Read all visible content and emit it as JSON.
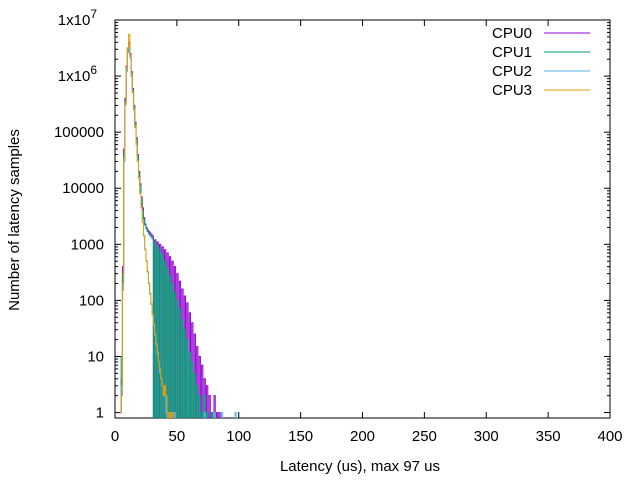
{
  "chart_data": {
    "type": "line",
    "title": "",
    "xlabel": "Latency (us), max 97 us",
    "ylabel": "Number of latency samples",
    "xlim": [
      0,
      400
    ],
    "ylim": [
      0.8,
      10000000
    ],
    "yscale": "log",
    "grid": false,
    "legend_position": "top-right",
    "x_ticks": [
      0,
      50,
      100,
      150,
      200,
      250,
      300,
      350,
      400
    ],
    "x_tick_labels": [
      "0",
      "50",
      "100",
      "150",
      "200",
      "250",
      "300",
      "350",
      "400"
    ],
    "y_ticks": [
      1,
      10,
      100,
      1000,
      10000,
      100000,
      1000000,
      10000000
    ],
    "y_tick_labels": [
      "1",
      "10",
      "100",
      "1000",
      "10000",
      "100000",
      "1x10",
      "1x10"
    ],
    "y_tick_exponents": [
      "",
      "",
      "",
      "",
      "",
      "",
      "6",
      "7"
    ],
    "series": [
      {
        "name": "CPU0",
        "color": "#9400d3",
        "points": [
          [
            3,
            1
          ],
          [
            4,
            1
          ],
          [
            5,
            4
          ],
          [
            6,
            400
          ],
          [
            7,
            50000
          ],
          [
            8,
            400000
          ],
          [
            9,
            1500000
          ],
          [
            10,
            3000000
          ],
          [
            11,
            4000000
          ],
          [
            12,
            2500000
          ],
          [
            13,
            1200000
          ],
          [
            14,
            600000
          ],
          [
            15,
            300000
          ],
          [
            16,
            150000
          ],
          [
            17,
            80000
          ],
          [
            18,
            40000
          ],
          [
            19,
            20000
          ],
          [
            20,
            12000
          ],
          [
            21,
            7000
          ],
          [
            22,
            4500
          ],
          [
            23,
            3000
          ],
          [
            24,
            2300
          ],
          [
            25,
            2000
          ],
          [
            26,
            1800
          ],
          [
            27,
            1700
          ],
          [
            28,
            1600
          ],
          [
            29,
            1500
          ],
          [
            30,
            1400
          ],
          [
            32,
            1200
          ],
          [
            34,
            1100
          ],
          [
            36,
            1000
          ],
          [
            38,
            900
          ],
          [
            40,
            800
          ],
          [
            42,
            700
          ],
          [
            44,
            600
          ],
          [
            46,
            500
          ],
          [
            48,
            400
          ],
          [
            50,
            300
          ],
          [
            52,
            220
          ],
          [
            54,
            160
          ],
          [
            56,
            120
          ],
          [
            58,
            90
          ],
          [
            60,
            60
          ],
          [
            62,
            40
          ],
          [
            64,
            25
          ],
          [
            66,
            15
          ],
          [
            68,
            10
          ],
          [
            70,
            7
          ],
          [
            72,
            4
          ],
          [
            74,
            3
          ],
          [
            76,
            2
          ],
          [
            78,
            1
          ],
          [
            80,
            2
          ],
          [
            82,
            1
          ],
          [
            84,
            1
          ]
        ]
      },
      {
        "name": "CPU1",
        "color": "#009e73",
        "points": [
          [
            4,
            1
          ],
          [
            5,
            10
          ],
          [
            6,
            300
          ],
          [
            7,
            40000
          ],
          [
            8,
            350000
          ],
          [
            9,
            1300000
          ],
          [
            10,
            2800000
          ],
          [
            11,
            3800000
          ],
          [
            12,
            2300000
          ],
          [
            13,
            1100000
          ],
          [
            14,
            550000
          ],
          [
            15,
            280000
          ],
          [
            16,
            140000
          ],
          [
            17,
            75000
          ],
          [
            18,
            38000
          ],
          [
            19,
            19000
          ],
          [
            20,
            11000
          ],
          [
            21,
            6500
          ],
          [
            22,
            4000
          ],
          [
            23,
            2800
          ],
          [
            24,
            2200
          ],
          [
            25,
            1900
          ],
          [
            26,
            1700
          ],
          [
            27,
            1550
          ],
          [
            28,
            1450
          ],
          [
            29,
            1350
          ],
          [
            30,
            1250
          ],
          [
            32,
            1100
          ],
          [
            34,
            950
          ],
          [
            36,
            800
          ],
          [
            38,
            650
          ],
          [
            40,
            500
          ],
          [
            42,
            380
          ],
          [
            44,
            280
          ],
          [
            46,
            200
          ],
          [
            48,
            140
          ],
          [
            50,
            100
          ],
          [
            52,
            70
          ],
          [
            54,
            45
          ],
          [
            56,
            30
          ],
          [
            58,
            20
          ],
          [
            60,
            12
          ],
          [
            62,
            8
          ],
          [
            64,
            5
          ],
          [
            66,
            3
          ],
          [
            68,
            2
          ],
          [
            70,
            1
          ],
          [
            72,
            2
          ],
          [
            74,
            1
          ],
          [
            78,
            1
          ],
          [
            80,
            1
          ]
        ]
      },
      {
        "name": "CPU2",
        "color": "#56b4e9",
        "points": [
          [
            4,
            1
          ],
          [
            5,
            3
          ],
          [
            6,
            200
          ],
          [
            7,
            30000
          ],
          [
            8,
            300000
          ],
          [
            9,
            1200000
          ],
          [
            10,
            2600000
          ],
          [
            11,
            3500000
          ],
          [
            12,
            2100000
          ],
          [
            13,
            1000000
          ],
          [
            14,
            500000
          ],
          [
            15,
            250000
          ],
          [
            16,
            120000
          ],
          [
            17,
            60000
          ],
          [
            18,
            30000
          ],
          [
            19,
            15000
          ],
          [
            20,
            8000
          ],
          [
            21,
            4500
          ],
          [
            22,
            2500
          ],
          [
            23,
            1400
          ],
          [
            24,
            800
          ],
          [
            25,
            500
          ],
          [
            26,
            320
          ],
          [
            27,
            200
          ],
          [
            28,
            130
          ],
          [
            29,
            85
          ],
          [
            30,
            55
          ],
          [
            31,
            36
          ],
          [
            32,
            24
          ],
          [
            33,
            16
          ],
          [
            34,
            11
          ],
          [
            35,
            8
          ],
          [
            36,
            5
          ],
          [
            37,
            4
          ],
          [
            38,
            3
          ],
          [
            39,
            2
          ],
          [
            40,
            2
          ],
          [
            41,
            1
          ],
          [
            44,
            1
          ],
          [
            48,
            1
          ],
          [
            72,
            1
          ],
          [
            80,
            1
          ],
          [
            86,
            1
          ],
          [
            97,
            1
          ]
        ]
      },
      {
        "name": "CPU3",
        "color": "#e69f00",
        "points": [
          [
            4,
            1
          ],
          [
            5,
            2
          ],
          [
            6,
            150
          ],
          [
            7,
            35000
          ],
          [
            8,
            320000
          ],
          [
            9,
            1400000
          ],
          [
            10,
            3200000
          ],
          [
            11,
            5500000
          ],
          [
            12,
            2400000
          ],
          [
            13,
            1100000
          ],
          [
            14,
            520000
          ],
          [
            15,
            260000
          ],
          [
            16,
            125000
          ],
          [
            17,
            62000
          ],
          [
            18,
            31000
          ],
          [
            19,
            15500
          ],
          [
            20,
            8200
          ],
          [
            21,
            4600
          ],
          [
            22,
            2600
          ],
          [
            23,
            1450
          ],
          [
            24,
            820
          ],
          [
            25,
            510
          ],
          [
            26,
            330
          ],
          [
            27,
            205
          ],
          [
            28,
            135
          ],
          [
            29,
            88
          ],
          [
            30,
            57
          ],
          [
            31,
            38
          ],
          [
            32,
            25
          ],
          [
            33,
            17
          ],
          [
            34,
            12
          ],
          [
            35,
            8
          ],
          [
            36,
            6
          ],
          [
            37,
            4
          ],
          [
            38,
            3
          ],
          [
            39,
            2
          ],
          [
            40,
            3
          ],
          [
            41,
            2
          ],
          [
            42,
            1
          ],
          [
            44,
            1
          ],
          [
            46,
            1
          ]
        ]
      }
    ]
  }
}
